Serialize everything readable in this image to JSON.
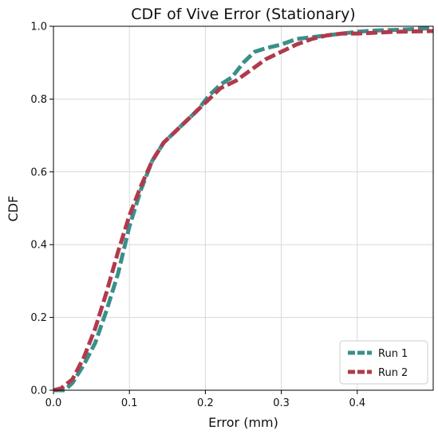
{
  "chart_data": {
    "type": "line",
    "title": "CDF of Vive Error (Stationary)",
    "xlabel": "Error (mm)",
    "ylabel": "CDF",
    "xlim": [
      0.0,
      0.5
    ],
    "ylim": [
      0.0,
      1.0
    ],
    "xticks": [
      "0.0",
      "0.1",
      "0.2",
      "0.3",
      "0.4"
    ],
    "yticks": [
      "0.0",
      "0.2",
      "0.4",
      "0.6",
      "0.8",
      "1.0"
    ],
    "grid": true,
    "legend_position": "bottom-right",
    "series": [
      {
        "name": "Run 1",
        "color": "#3a8f8a",
        "dash": "dashed",
        "points": [
          [
            0.0,
            0.0
          ],
          [
            0.015,
            0.0
          ],
          [
            0.025,
            0.02
          ],
          [
            0.04,
            0.07
          ],
          [
            0.055,
            0.13
          ],
          [
            0.07,
            0.22
          ],
          [
            0.085,
            0.32
          ],
          [
            0.1,
            0.45
          ],
          [
            0.115,
            0.55
          ],
          [
            0.13,
            0.63
          ],
          [
            0.145,
            0.68
          ],
          [
            0.16,
            0.71
          ],
          [
            0.175,
            0.74
          ],
          [
            0.19,
            0.77
          ],
          [
            0.205,
            0.81
          ],
          [
            0.22,
            0.84
          ],
          [
            0.235,
            0.86
          ],
          [
            0.25,
            0.9
          ],
          [
            0.265,
            0.93
          ],
          [
            0.28,
            0.94
          ],
          [
            0.3,
            0.95
          ],
          [
            0.32,
            0.965
          ],
          [
            0.34,
            0.97
          ],
          [
            0.36,
            0.975
          ],
          [
            0.38,
            0.98
          ],
          [
            0.4,
            0.985
          ],
          [
            0.42,
            0.988
          ],
          [
            0.45,
            0.99
          ],
          [
            0.48,
            0.993
          ],
          [
            0.5,
            0.995
          ]
        ]
      },
      {
        "name": "Run 2",
        "color": "#b03a4d",
        "dash": "dashed",
        "points": [
          [
            0.0,
            0.0
          ],
          [
            0.01,
            0.005
          ],
          [
            0.025,
            0.03
          ],
          [
            0.04,
            0.09
          ],
          [
            0.055,
            0.17
          ],
          [
            0.07,
            0.27
          ],
          [
            0.085,
            0.38
          ],
          [
            0.1,
            0.48
          ],
          [
            0.115,
            0.56
          ],
          [
            0.13,
            0.63
          ],
          [
            0.145,
            0.68
          ],
          [
            0.16,
            0.71
          ],
          [
            0.175,
            0.74
          ],
          [
            0.19,
            0.77
          ],
          [
            0.205,
            0.8
          ],
          [
            0.22,
            0.83
          ],
          [
            0.24,
            0.85
          ],
          [
            0.26,
            0.88
          ],
          [
            0.28,
            0.91
          ],
          [
            0.3,
            0.93
          ],
          [
            0.32,
            0.95
          ],
          [
            0.34,
            0.965
          ],
          [
            0.36,
            0.975
          ],
          [
            0.38,
            0.98
          ],
          [
            0.4,
            0.98
          ],
          [
            0.42,
            0.982
          ],
          [
            0.45,
            0.985
          ],
          [
            0.48,
            0.986
          ],
          [
            0.5,
            0.987
          ]
        ]
      }
    ]
  }
}
